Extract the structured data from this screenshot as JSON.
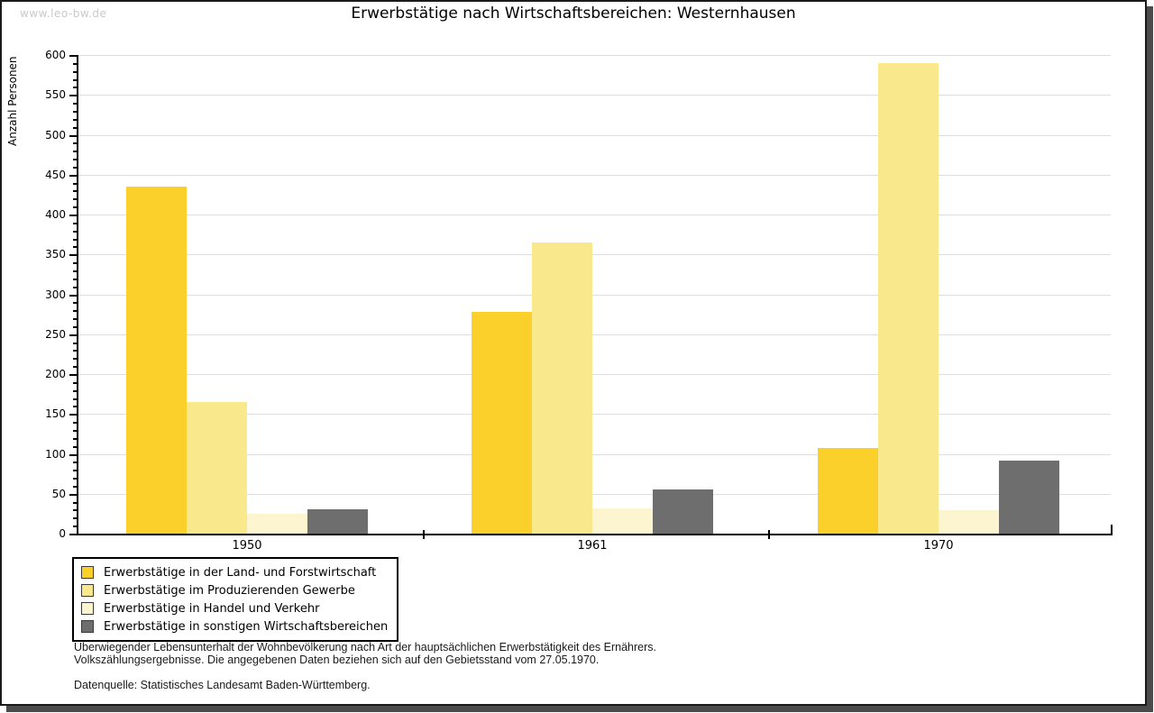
{
  "watermark": "www.leo-bw.de",
  "title": "Erwerbstätige nach Wirtschaftsbereichen: Westernhausen",
  "chart_data": {
    "type": "bar",
    "title": "Erwerbstätige nach Wirtschaftsbereichen: Westernhausen",
    "xlabel": "",
    "ylabel": "Anzahl Personen",
    "ylim": [
      0,
      600
    ],
    "ytick_interval": 50,
    "yminor_interval": 10,
    "grid": true,
    "legend_position": "bottom-left",
    "categories": [
      "1950",
      "1961",
      "1970"
    ],
    "series": [
      {
        "name": "Erwerbstätige in der Land- und Forstwirtschaft",
        "color": "#FCD02B",
        "values": [
          435,
          278,
          107
        ]
      },
      {
        "name": "Erwerbstätige im Produzierenden Gewerbe",
        "color": "#FAE88C",
        "values": [
          165,
          365,
          590
        ]
      },
      {
        "name": "Erwerbstätige in Handel und Verkehr",
        "color": "#FDF5CF",
        "values": [
          25,
          32,
          29
        ]
      },
      {
        "name": "Erwerbstätige in sonstigen Wirtschaftsbereichen",
        "color": "#6E6E6E",
        "values": [
          30,
          55,
          92
        ]
      }
    ]
  },
  "footnotes": {
    "line1": "Überwiegender Lebensunterhalt der Wohnbevölkerung nach Art der hauptsächlichen Erwerbstätigkeit des Ernährers.",
    "line2": "Volkszählungsergebnisse. Die angegebenen Daten beziehen sich auf den Gebietsstand vom 27.05.1970.",
    "source": "Datenquelle: Statistisches Landesamt Baden-Württemberg."
  },
  "colors": {
    "grid": "#dedede",
    "axis": "#000000",
    "frame_border": "#1a1a1a",
    "shadow": "#4b4b4b",
    "watermark": "#c9c9c9",
    "background": "#ffffff"
  }
}
